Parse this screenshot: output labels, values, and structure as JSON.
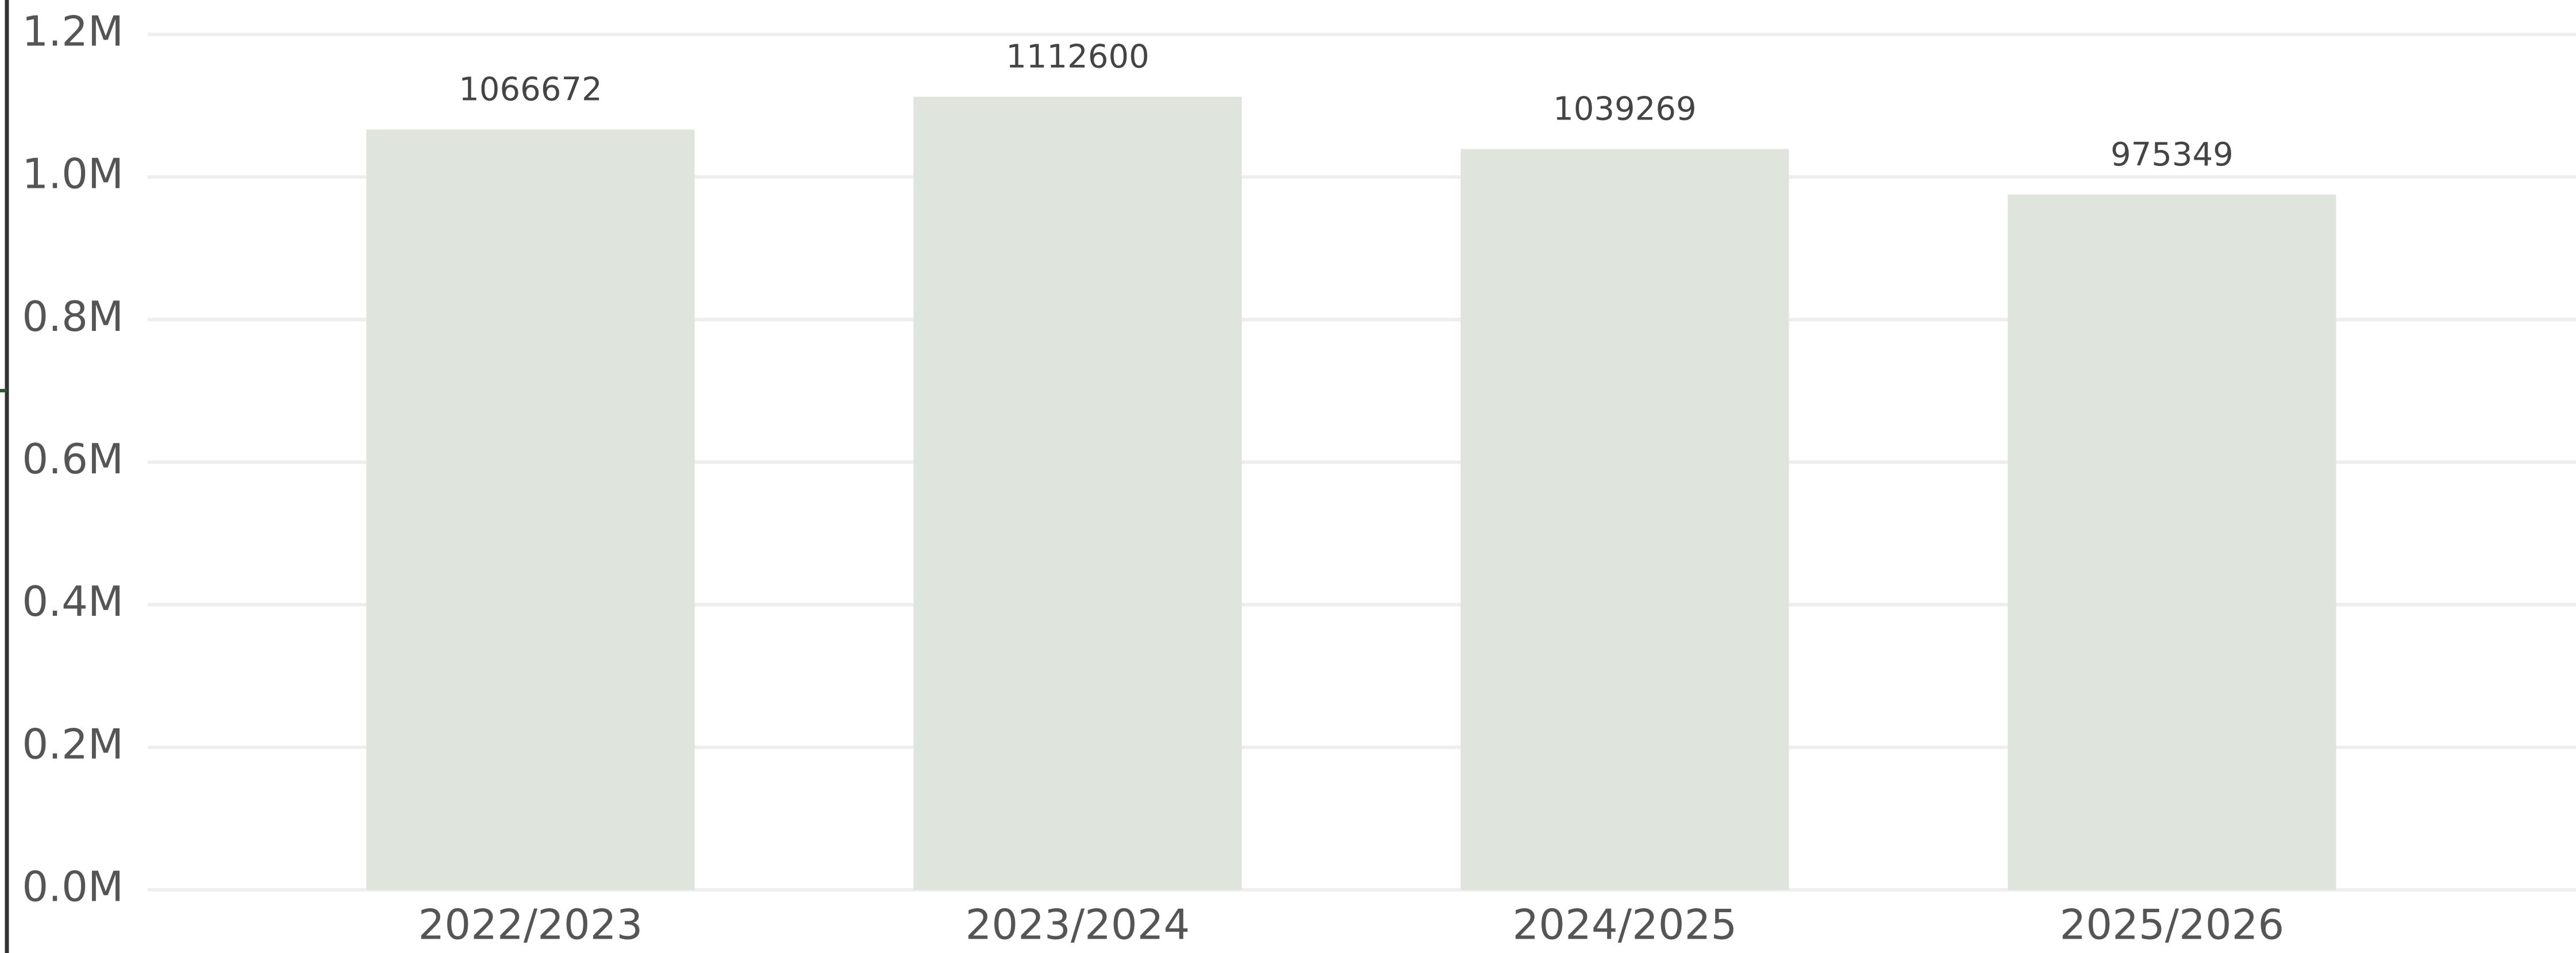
{
  "chart_data": {
    "type": "bar",
    "categories": [
      "2022/2023",
      "2023/2024",
      "2024/2025",
      "2025/2026"
    ],
    "values": [
      1066672,
      1112600,
      1039269,
      975349
    ],
    "color": "#dfe4dc",
    "ylim": [
      0,
      1200000
    ],
    "yticks": [
      {
        "value": 0,
        "label": "0.0M"
      },
      {
        "value": 200000,
        "label": "0.2M"
      },
      {
        "value": 400000,
        "label": "0.4M"
      },
      {
        "value": 600000,
        "label": "0.6M"
      },
      {
        "value": 800000,
        "label": "0.8M"
      },
      {
        "value": 1000000,
        "label": "1.0M"
      },
      {
        "value": 1200000,
        "label": "1.2M"
      }
    ],
    "grid": true
  }
}
